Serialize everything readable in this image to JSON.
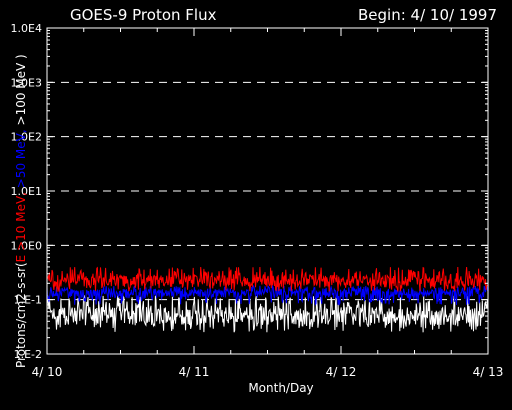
{
  "chart_data": {
    "type": "line",
    "title": "GOES-9 Proton Flux",
    "subtitle": "Begin: 4/ 10/ 1997",
    "xlabel": "Month/Day",
    "ylabel": {
      "prefix": "Protons/cm2-s-sr(",
      "parts": [
        {
          "text": "E >10 MeV, ",
          "color": "#ff0000"
        },
        {
          "text": ">50 MeV, ",
          "color": "#0000ff"
        },
        {
          "text": ">100 MeV )",
          "color": "#ffffff"
        }
      ]
    },
    "x_ticks": [
      "4/ 10",
      "4/ 11",
      "4/ 12",
      "4/ 13"
    ],
    "xlim": [
      0,
      3
    ],
    "y_scale": "log",
    "ylim": [
      0.01,
      10000
    ],
    "y_ticks": [
      "1.E-2",
      "1.E-1",
      "1.0E0",
      "1.0E1",
      "1.0E2",
      "1.0E3",
      "1.0E4"
    ],
    "grid": "dashed horizontal",
    "series": [
      {
        "color": "#ff0000",
        "approx_level": 0.22,
        "approx_range": [
          0.14,
          0.4
        ]
      },
      {
        "color": "#0000ff",
        "approx_level": 0.13,
        "approx_range": [
          0.08,
          0.18
        ]
      },
      {
        "color": "#ffffff",
        "approx_level": 0.05,
        "approx_range": [
          0.025,
          0.12
        ]
      }
    ]
  }
}
